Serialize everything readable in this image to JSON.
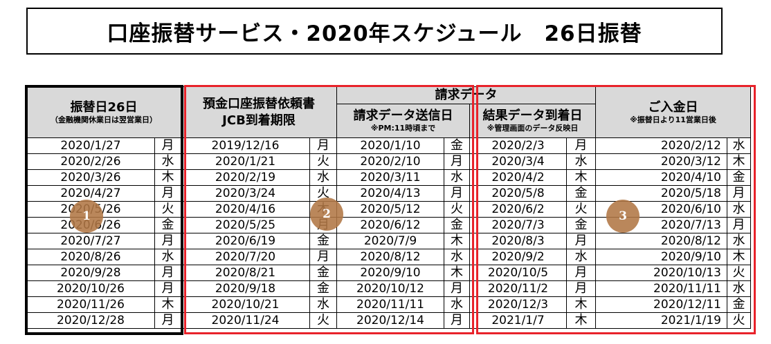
{
  "title": "口座振替サービス・2020年スケジュール　26日振替",
  "headers": {
    "c1_main": "振替日26日",
    "c1_sub": "（金融機関休業日は翌営業日）",
    "c2_line1": "預金口座振替依頼書",
    "c2_line2": "JCB到着期限",
    "group": "請求データ",
    "c3_main": "請求データ送信日",
    "c3_sub": "※PM:11時頃まで",
    "c4_main": "結果データ到着日",
    "c4_sub": "※管理画面のデータ反映日",
    "c5_main": "ご入金日",
    "c5_sub": "※振替日より11営業日後"
  },
  "rows": [
    {
      "d1": "2020/1/27",
      "w1": "月",
      "d2": "2019/12/16",
      "w2": "月",
      "d3": "2020/1/10",
      "w3": "金",
      "d4": "2020/2/3",
      "w4": "月",
      "d5": "2020/2/12",
      "w5": "水"
    },
    {
      "d1": "2020/2/26",
      "w1": "水",
      "d2": "2020/1/21",
      "w2": "火",
      "d3": "2020/2/10",
      "w3": "月",
      "d4": "2020/3/4",
      "w4": "水",
      "d5": "2020/3/12",
      "w5": "木"
    },
    {
      "d1": "2020/3/26",
      "w1": "木",
      "d2": "2020/2/19",
      "w2": "水",
      "d3": "2020/3/11",
      "w3": "水",
      "d4": "2020/4/2",
      "w4": "木",
      "d5": "2020/4/10",
      "w5": "金"
    },
    {
      "d1": "2020/4/27",
      "w1": "月",
      "d2": "2020/3/24",
      "w2": "火",
      "d3": "2020/4/13",
      "w3": "月",
      "d4": "2020/5/8",
      "w4": "金",
      "d5": "2020/5/18",
      "w5": "月"
    },
    {
      "d1": "2020/5/26",
      "w1": "火",
      "d2": "2020/4/16",
      "w2": "木",
      "d3": "2020/5/12",
      "w3": "火",
      "d4": "2020/6/2",
      "w4": "火",
      "d5": "2020/6/10",
      "w5": "水"
    },
    {
      "d1": "2020/6/26",
      "w1": "金",
      "d2": "2020/5/25",
      "w2": "月",
      "d3": "2020/6/12",
      "w3": "金",
      "d4": "2020/7/3",
      "w4": "金",
      "d5": "2020/7/13",
      "w5": "月"
    },
    {
      "d1": "2020/7/27",
      "w1": "月",
      "d2": "2020/6/19",
      "w2": "金",
      "d3": "2020/7/9",
      "w3": "木",
      "d4": "2020/8/3",
      "w4": "月",
      "d5": "2020/8/12",
      "w5": "水"
    },
    {
      "d1": "2020/8/26",
      "w1": "水",
      "d2": "2020/7/20",
      "w2": "月",
      "d3": "2020/8/12",
      "w3": "水",
      "d4": "2020/9/2",
      "w4": "水",
      "d5": "2020/9/10",
      "w5": "木"
    },
    {
      "d1": "2020/9/28",
      "w1": "月",
      "d2": "2020/8/21",
      "w2": "金",
      "d3": "2020/9/10",
      "w3": "木",
      "d4": "2020/10/5",
      "w4": "月",
      "d5": "2020/10/13",
      "w5": "火"
    },
    {
      "d1": "2020/10/26",
      "w1": "月",
      "d2": "2020/9/18",
      "w2": "金",
      "d3": "2020/10/12",
      "w3": "月",
      "d4": "2020/11/2",
      "w4": "月",
      "d5": "2020/11/11",
      "w5": "水"
    },
    {
      "d1": "2020/11/26",
      "w1": "木",
      "d2": "2020/10/21",
      "w2": "水",
      "d3": "2020/11/11",
      "w3": "水",
      "d4": "2020/12/3",
      "w4": "木",
      "d5": "2020/12/11",
      "w5": "金"
    },
    {
      "d1": "2020/12/28",
      "w1": "月",
      "d2": "2020/11/24",
      "w2": "火",
      "d3": "2020/12/14",
      "w3": "月",
      "d4": "2021/1/7",
      "w4": "木",
      "d5": "2021/1/19",
      "w5": "火"
    }
  ],
  "badges": [
    "1",
    "2",
    "3"
  ],
  "colors": {
    "header_bg": "#d9d9d9",
    "frame_red": "#e8222a",
    "badge": "#b07644"
  }
}
